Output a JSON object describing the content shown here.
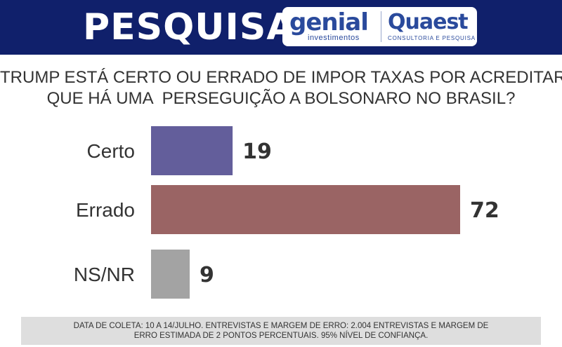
{
  "header": {
    "title": "PESQUISA",
    "logos": {
      "genial_name": "genial",
      "genial_sub": "investimentos",
      "quaest_name": "Quaest",
      "quaest_sub": "CONSULTORIA E PESQUISA"
    },
    "background_color": "#10206b"
  },
  "question": {
    "line1": "TRUMP ESTÁ CERTO OU ERRADO DE IMPOR TAXAS POR ACREDITAR",
    "line2": "QUE HÁ UMA  PERSEGUIÇÃO A BOLSONARO NO BRASIL?"
  },
  "chart_data": {
    "type": "bar",
    "orientation": "horizontal",
    "categories": [
      "Certo",
      "Errado",
      "NS/NR"
    ],
    "values": [
      19,
      72,
      9
    ],
    "colors": [
      "#635e9b",
      "#9a6464",
      "#a3a3a3"
    ],
    "grid": false,
    "legend": "none"
  },
  "footer": {
    "line1": "DATA DE COLETA: 10 A 14/JULHO. ENTREVISTAS E MARGEM DE ERRO: 2.004 ENTREVISTAS E MARGEM DE",
    "line2": "ERRO ESTIMADA DE 2 PONTOS PERCENTUAIS. 95% NÍVEL DE CONFIANÇA."
  }
}
